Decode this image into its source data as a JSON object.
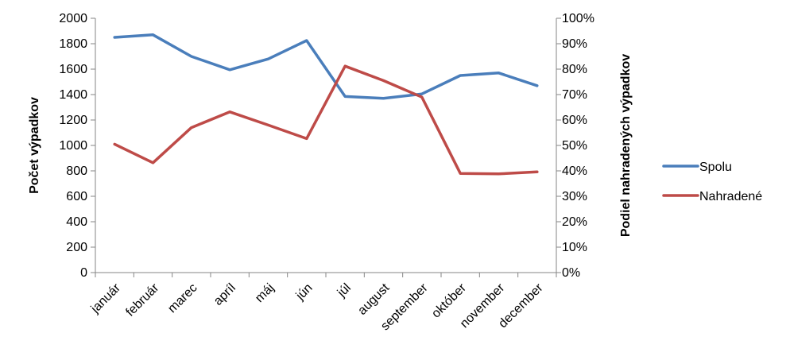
{
  "chart_data": {
    "type": "line",
    "title": "",
    "xlabel": "",
    "ylabel": "Počet výpadkov",
    "y2label": "Podiel  nahradených výpadkov",
    "categories": [
      "január",
      "február",
      "marec",
      "apríl",
      "máj",
      "jún",
      "júl",
      "august",
      "september",
      "október",
      "november",
      "december"
    ],
    "ylim": [
      0,
      2000
    ],
    "y2lim": [
      0,
      1
    ],
    "yticks": [
      "0",
      "200",
      "400",
      "600",
      "800",
      "1000",
      "1200",
      "1400",
      "1600",
      "1800",
      "2000"
    ],
    "y2ticks": [
      "0%",
      "10%",
      "20%",
      "30%",
      "40%",
      "50%",
      "60%",
      "70%",
      "80%",
      "90%",
      "100%"
    ],
    "grid": false,
    "legend": "right",
    "series": [
      {
        "name": "Spolu",
        "axis": "left",
        "color": "#4a7ebb",
        "values": [
          1850,
          1870,
          1700,
          1595,
          1680,
          1825,
          1385,
          1370,
          1405,
          1550,
          1570,
          1470
        ]
      },
      {
        "name": "Nahradené",
        "axis": "right",
        "color": "#be4b48",
        "values": [
          0.505,
          0.432,
          0.57,
          0.632,
          0.58,
          0.527,
          0.812,
          0.755,
          0.69,
          0.39,
          0.388,
          0.396
        ]
      }
    ]
  }
}
